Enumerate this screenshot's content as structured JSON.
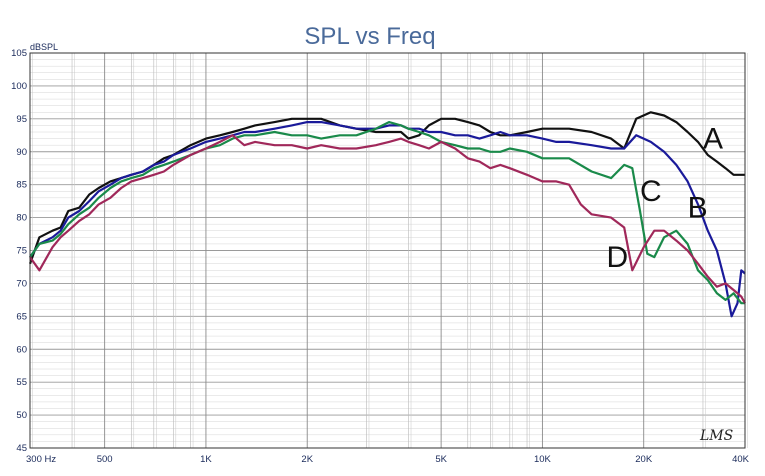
{
  "chart_data": {
    "type": "line",
    "title": "SPL vs Freq",
    "ylabel": "dBSPL",
    "xlabel": "",
    "xscale": "log",
    "xlim": [
      300,
      40000
    ],
    "ylim": [
      45,
      105
    ],
    "grid": true,
    "x_tick_labels": [
      {
        "value": 300,
        "label": "300  Hz"
      },
      {
        "value": 500,
        "label": "500"
      },
      {
        "value": 1000,
        "label": "1K"
      },
      {
        "value": 2000,
        "label": "2K"
      },
      {
        "value": 5000,
        "label": "5K"
      },
      {
        "value": 10000,
        "label": "10K"
      },
      {
        "value": 20000,
        "label": "20K"
      },
      {
        "value": 40000,
        "label": "40K"
      }
    ],
    "y_ticks": [
      45,
      50,
      55,
      60,
      65,
      70,
      75,
      80,
      85,
      90,
      95,
      100,
      105
    ],
    "series": [
      {
        "name": "A",
        "color": "#111111",
        "label_at": [
          30000,
          90.5
        ],
        "points": [
          [
            300,
            73
          ],
          [
            320,
            77
          ],
          [
            350,
            78
          ],
          [
            370,
            78.5
          ],
          [
            390,
            81
          ],
          [
            420,
            81.5
          ],
          [
            450,
            83.5
          ],
          [
            480,
            84.5
          ],
          [
            520,
            85.5
          ],
          [
            560,
            86
          ],
          [
            600,
            86.5
          ],
          [
            650,
            87
          ],
          [
            700,
            88
          ],
          [
            750,
            89
          ],
          [
            800,
            89.5
          ],
          [
            900,
            91
          ],
          [
            1000,
            92
          ],
          [
            1100,
            92.5
          ],
          [
            1200,
            93
          ],
          [
            1300,
            93.5
          ],
          [
            1400,
            94
          ],
          [
            1600,
            94.5
          ],
          [
            1800,
            95
          ],
          [
            2000,
            95
          ],
          [
            2200,
            95
          ],
          [
            2500,
            94
          ],
          [
            2800,
            93.5
          ],
          [
            3200,
            93
          ],
          [
            3500,
            93
          ],
          [
            3800,
            93
          ],
          [
            4000,
            92
          ],
          [
            4300,
            92.5
          ],
          [
            4600,
            94
          ],
          [
            5000,
            95
          ],
          [
            5500,
            95
          ],
          [
            6000,
            94.5
          ],
          [
            6500,
            94
          ],
          [
            7000,
            93
          ],
          [
            7500,
            92.5
          ],
          [
            8000,
            92.5
          ],
          [
            9000,
            93
          ],
          [
            10000,
            93.5
          ],
          [
            11000,
            93.5
          ],
          [
            12000,
            93.5
          ],
          [
            14000,
            93
          ],
          [
            16000,
            92
          ],
          [
            17500,
            90.5
          ],
          [
            19000,
            95
          ],
          [
            21000,
            96
          ],
          [
            23000,
            95.5
          ],
          [
            25000,
            94.5
          ],
          [
            27000,
            93
          ],
          [
            29000,
            91.5
          ],
          [
            31000,
            89.5
          ],
          [
            33000,
            88.5
          ],
          [
            35000,
            87.5
          ],
          [
            37000,
            86.5
          ],
          [
            40000,
            86.5
          ]
        ]
      },
      {
        "name": "B",
        "color": "#1a1a9a",
        "label_at": [
          27000,
          80
        ],
        "points": [
          [
            300,
            74
          ],
          [
            320,
            76
          ],
          [
            350,
            77
          ],
          [
            370,
            78
          ],
          [
            390,
            80
          ],
          [
            420,
            81
          ],
          [
            450,
            82.5
          ],
          [
            480,
            84
          ],
          [
            520,
            85
          ],
          [
            560,
            86
          ],
          [
            600,
            86.5
          ],
          [
            650,
            87
          ],
          [
            700,
            88
          ],
          [
            750,
            88.5
          ],
          [
            800,
            89.5
          ],
          [
            900,
            90.5
          ],
          [
            1000,
            91.5
          ],
          [
            1100,
            92
          ],
          [
            1200,
            92.5
          ],
          [
            1300,
            93
          ],
          [
            1400,
            93
          ],
          [
            1600,
            93.5
          ],
          [
            1800,
            94
          ],
          [
            2000,
            94.5
          ],
          [
            2200,
            94.5
          ],
          [
            2500,
            94
          ],
          [
            2800,
            93.5
          ],
          [
            3200,
            93.5
          ],
          [
            3500,
            94
          ],
          [
            3800,
            94
          ],
          [
            4000,
            93.5
          ],
          [
            4300,
            93.5
          ],
          [
            4600,
            93
          ],
          [
            5000,
            93
          ],
          [
            5500,
            92.5
          ],
          [
            6000,
            92.5
          ],
          [
            6500,
            92
          ],
          [
            7000,
            92.5
          ],
          [
            7500,
            93
          ],
          [
            8000,
            92.5
          ],
          [
            9000,
            92.5
          ],
          [
            10000,
            92
          ],
          [
            11000,
            91.5
          ],
          [
            12000,
            91.5
          ],
          [
            14000,
            91
          ],
          [
            16000,
            90.5
          ],
          [
            17500,
            90.5
          ],
          [
            19000,
            92.5
          ],
          [
            21000,
            91.5
          ],
          [
            23000,
            90
          ],
          [
            25000,
            88
          ],
          [
            27000,
            85.5
          ],
          [
            29000,
            82
          ],
          [
            31000,
            78
          ],
          [
            33000,
            75
          ],
          [
            35000,
            70
          ],
          [
            36500,
            65
          ],
          [
            38000,
            67
          ],
          [
            39000,
            72
          ],
          [
            40000,
            71.5
          ]
        ]
      },
      {
        "name": "C",
        "color": "#1a8a4a",
        "label_at": [
          19500,
          82.5
        ],
        "points": [
          [
            300,
            74
          ],
          [
            320,
            76
          ],
          [
            350,
            76.5
          ],
          [
            370,
            77.5
          ],
          [
            390,
            79
          ],
          [
            420,
            80.5
          ],
          [
            450,
            81.5
          ],
          [
            480,
            83
          ],
          [
            520,
            84.5
          ],
          [
            560,
            85.5
          ],
          [
            600,
            86
          ],
          [
            650,
            86.5
          ],
          [
            700,
            87.5
          ],
          [
            750,
            88
          ],
          [
            800,
            88.5
          ],
          [
            900,
            89.5
          ],
          [
            1000,
            90.5
          ],
          [
            1100,
            91
          ],
          [
            1200,
            92
          ],
          [
            1300,
            92.5
          ],
          [
            1400,
            92.5
          ],
          [
            1600,
            93
          ],
          [
            1800,
            92.5
          ],
          [
            2000,
            92.5
          ],
          [
            2200,
            92
          ],
          [
            2500,
            92.5
          ],
          [
            2800,
            92.5
          ],
          [
            3200,
            93.5
          ],
          [
            3500,
            94.5
          ],
          [
            3800,
            94
          ],
          [
            4000,
            93.5
          ],
          [
            4300,
            93
          ],
          [
            4600,
            92.5
          ],
          [
            5000,
            91.5
          ],
          [
            5500,
            91
          ],
          [
            6000,
            90.5
          ],
          [
            6500,
            90.5
          ],
          [
            7000,
            90
          ],
          [
            7500,
            90
          ],
          [
            8000,
            90.5
          ],
          [
            9000,
            90
          ],
          [
            10000,
            89
          ],
          [
            11000,
            89
          ],
          [
            12000,
            89
          ],
          [
            14000,
            87
          ],
          [
            16000,
            86
          ],
          [
            17500,
            88
          ],
          [
            18500,
            87.5
          ],
          [
            19500,
            81
          ],
          [
            20500,
            74.5
          ],
          [
            21500,
            74
          ],
          [
            23000,
            77
          ],
          [
            25000,
            78
          ],
          [
            27000,
            76
          ],
          [
            29000,
            72
          ],
          [
            31000,
            70.5
          ],
          [
            33000,
            68.5
          ],
          [
            35000,
            67.5
          ],
          [
            37000,
            68.5
          ],
          [
            39000,
            67
          ],
          [
            40000,
            67
          ]
        ]
      },
      {
        "name": "D",
        "color": "#a0285a",
        "label_at": [
          15500,
          72.5
        ],
        "points": [
          [
            300,
            74
          ],
          [
            320,
            72
          ],
          [
            350,
            75.5
          ],
          [
            370,
            77
          ],
          [
            390,
            78
          ],
          [
            420,
            79.5
          ],
          [
            450,
            80.5
          ],
          [
            480,
            82
          ],
          [
            520,
            83
          ],
          [
            560,
            84.5
          ],
          [
            600,
            85.5
          ],
          [
            650,
            86
          ],
          [
            700,
            86.5
          ],
          [
            750,
            87
          ],
          [
            800,
            88
          ],
          [
            900,
            89.5
          ],
          [
            1000,
            90.5
          ],
          [
            1100,
            91.5
          ],
          [
            1200,
            92.5
          ],
          [
            1300,
            91
          ],
          [
            1400,
            91.5
          ],
          [
            1600,
            91
          ],
          [
            1800,
            91
          ],
          [
            2000,
            90.5
          ],
          [
            2200,
            91
          ],
          [
            2500,
            90.5
          ],
          [
            2800,
            90.5
          ],
          [
            3200,
            91
          ],
          [
            3500,
            91.5
          ],
          [
            3800,
            92
          ],
          [
            4000,
            91.5
          ],
          [
            4300,
            91
          ],
          [
            4600,
            90.5
          ],
          [
            5000,
            91.5
          ],
          [
            5500,
            90.5
          ],
          [
            6000,
            89
          ],
          [
            6500,
            88.5
          ],
          [
            7000,
            87.5
          ],
          [
            7500,
            88
          ],
          [
            8000,
            87.5
          ],
          [
            9000,
            86.5
          ],
          [
            10000,
            85.5
          ],
          [
            11000,
            85.5
          ],
          [
            12000,
            85
          ],
          [
            13000,
            82
          ],
          [
            14000,
            80.5
          ],
          [
            16000,
            80
          ],
          [
            17500,
            78.5
          ],
          [
            18500,
            72
          ],
          [
            20000,
            75.5
          ],
          [
            21500,
            78
          ],
          [
            23000,
            78
          ],
          [
            25000,
            76.5
          ],
          [
            27000,
            75
          ],
          [
            29000,
            73
          ],
          [
            31000,
            71
          ],
          [
            33000,
            69.5
          ],
          [
            35000,
            70
          ],
          [
            37000,
            69
          ],
          [
            39000,
            68
          ],
          [
            40000,
            67
          ]
        ]
      }
    ]
  },
  "branding": {
    "logo_text": "LMS"
  }
}
